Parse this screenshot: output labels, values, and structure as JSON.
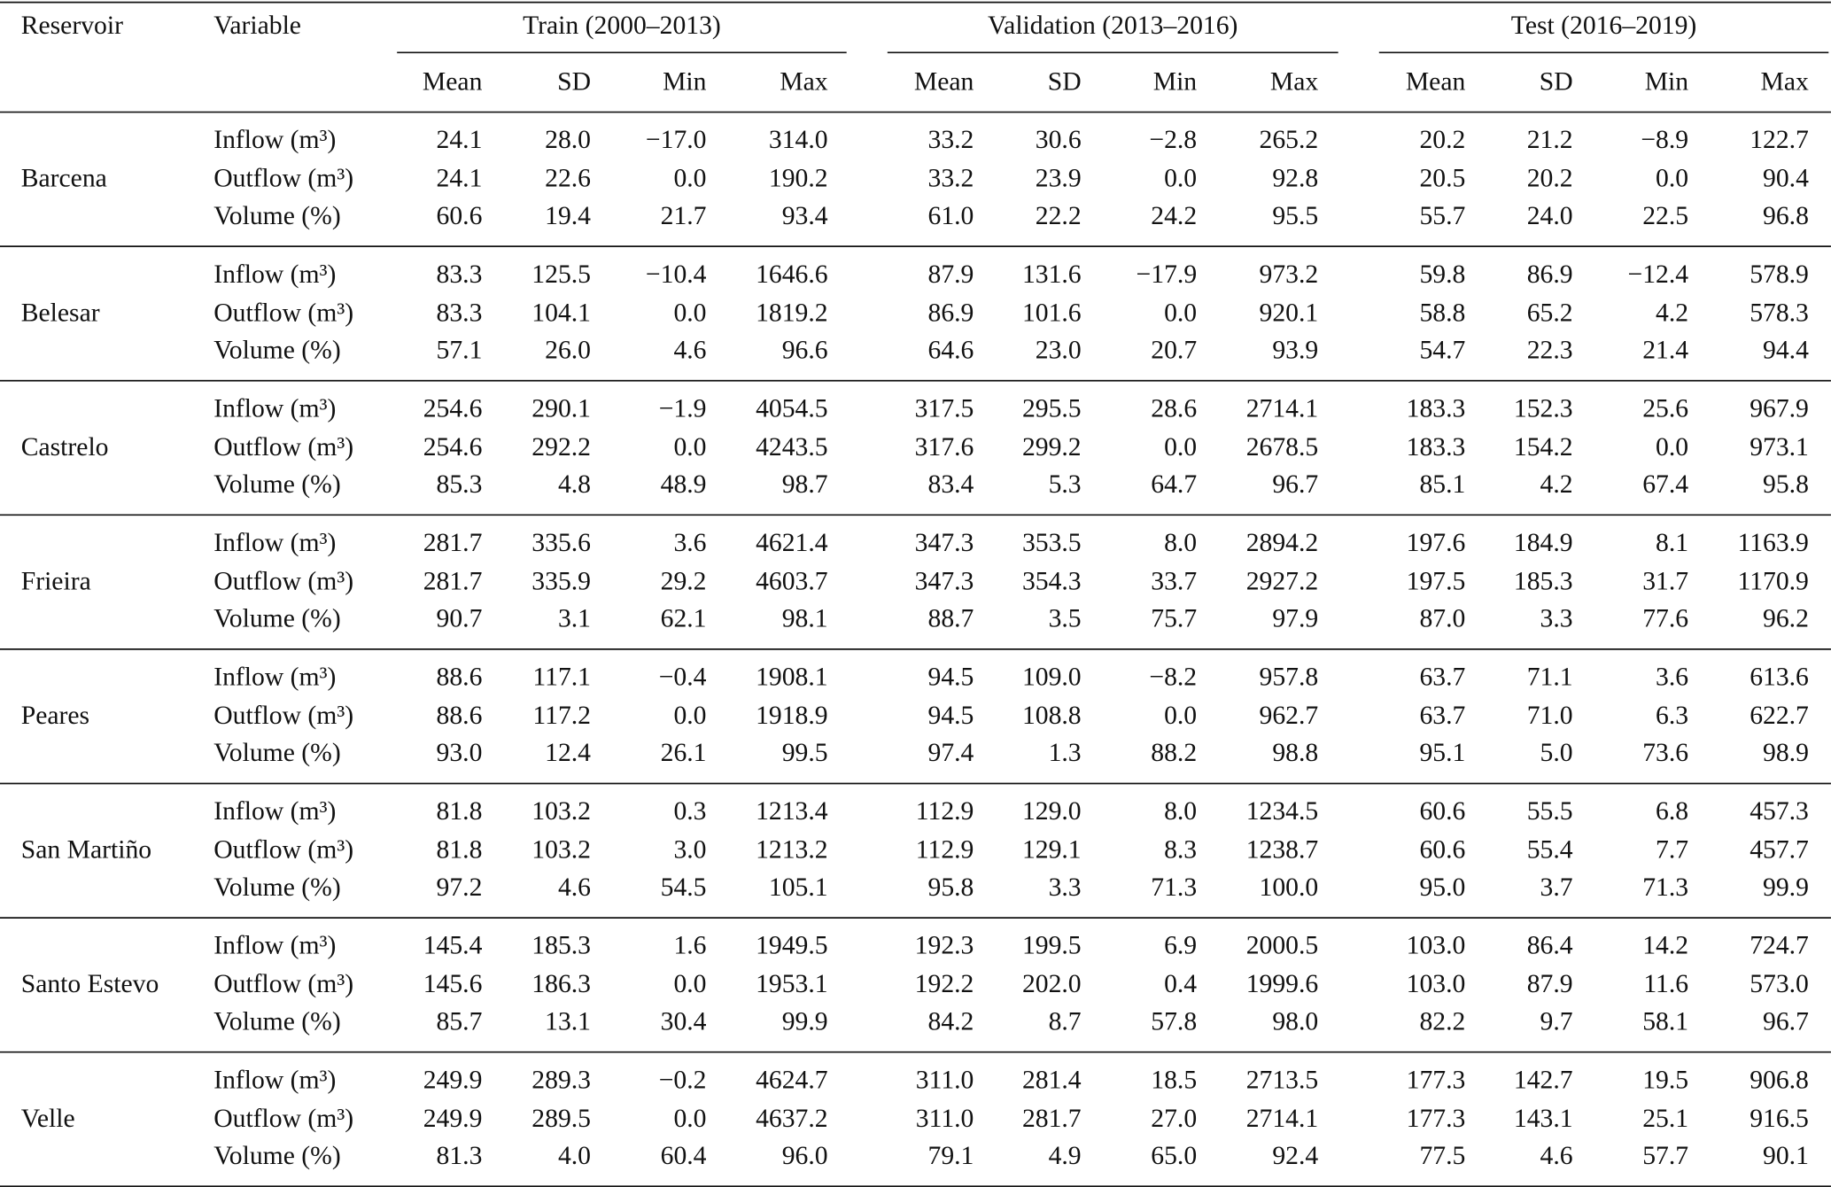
{
  "header": {
    "reservoir": "Reservoir",
    "variable": "Variable",
    "groups": [
      {
        "title": "Train (2000–2013)",
        "columns": [
          "Mean",
          "SD",
          "Min",
          "Max"
        ]
      },
      {
        "title": "Validation (2013–2016)",
        "columns": [
          "Mean",
          "SD",
          "Min",
          "Max"
        ]
      },
      {
        "title": "Test (2016–2019)",
        "columns": [
          "Mean",
          "SD",
          "Min",
          "Max"
        ]
      }
    ]
  },
  "rows": [
    {
      "reservoir": "Barcena",
      "variables": [
        {
          "name": "Inflow (m³)",
          "values": [
            "24.1",
            "28.0",
            "−17.0",
            "314.0",
            "33.2",
            "30.6",
            "−2.8",
            "265.2",
            "20.2",
            "21.2",
            "−8.9",
            "122.7"
          ]
        },
        {
          "name": "Outflow (m³)",
          "values": [
            "24.1",
            "22.6",
            "0.0",
            "190.2",
            "33.2",
            "23.9",
            "0.0",
            "92.8",
            "20.5",
            "20.2",
            "0.0",
            "90.4"
          ]
        },
        {
          "name": "Volume (%)",
          "values": [
            "60.6",
            "19.4",
            "21.7",
            "93.4",
            "61.0",
            "22.2",
            "24.2",
            "95.5",
            "55.7",
            "24.0",
            "22.5",
            "96.8"
          ]
        }
      ]
    },
    {
      "reservoir": "Belesar",
      "variables": [
        {
          "name": "Inflow (m³)",
          "values": [
            "83.3",
            "125.5",
            "−10.4",
            "1646.6",
            "87.9",
            "131.6",
            "−17.9",
            "973.2",
            "59.8",
            "86.9",
            "−12.4",
            "578.9"
          ]
        },
        {
          "name": "Outflow (m³)",
          "values": [
            "83.3",
            "104.1",
            "0.0",
            "1819.2",
            "86.9",
            "101.6",
            "0.0",
            "920.1",
            "58.8",
            "65.2",
            "4.2",
            "578.3"
          ]
        },
        {
          "name": "Volume (%)",
          "values": [
            "57.1",
            "26.0",
            "4.6",
            "96.6",
            "64.6",
            "23.0",
            "20.7",
            "93.9",
            "54.7",
            "22.3",
            "21.4",
            "94.4"
          ]
        }
      ]
    },
    {
      "reservoir": "Castrelo",
      "variables": [
        {
          "name": "Inflow (m³)",
          "values": [
            "254.6",
            "290.1",
            "−1.9",
            "4054.5",
            "317.5",
            "295.5",
            "28.6",
            "2714.1",
            "183.3",
            "152.3",
            "25.6",
            "967.9"
          ]
        },
        {
          "name": "Outflow (m³)",
          "values": [
            "254.6",
            "292.2",
            "0.0",
            "4243.5",
            "317.6",
            "299.2",
            "0.0",
            "2678.5",
            "183.3",
            "154.2",
            "0.0",
            "973.1"
          ]
        },
        {
          "name": "Volume (%)",
          "values": [
            "85.3",
            "4.8",
            "48.9",
            "98.7",
            "83.4",
            "5.3",
            "64.7",
            "96.7",
            "85.1",
            "4.2",
            "67.4",
            "95.8"
          ]
        }
      ]
    },
    {
      "reservoir": "Frieira",
      "variables": [
        {
          "name": "Inflow (m³)",
          "values": [
            "281.7",
            "335.6",
            "3.6",
            "4621.4",
            "347.3",
            "353.5",
            "8.0",
            "2894.2",
            "197.6",
            "184.9",
            "8.1",
            "1163.9"
          ]
        },
        {
          "name": "Outflow (m³)",
          "values": [
            "281.7",
            "335.9",
            "29.2",
            "4603.7",
            "347.3",
            "354.3",
            "33.7",
            "2927.2",
            "197.5",
            "185.3",
            "31.7",
            "1170.9"
          ]
        },
        {
          "name": "Volume (%)",
          "values": [
            "90.7",
            "3.1",
            "62.1",
            "98.1",
            "88.7",
            "3.5",
            "75.7",
            "97.9",
            "87.0",
            "3.3",
            "77.6",
            "96.2"
          ]
        }
      ]
    },
    {
      "reservoir": "Peares",
      "variables": [
        {
          "name": "Inflow (m³)",
          "values": [
            "88.6",
            "117.1",
            "−0.4",
            "1908.1",
            "94.5",
            "109.0",
            "−8.2",
            "957.8",
            "63.7",
            "71.1",
            "3.6",
            "613.6"
          ]
        },
        {
          "name": "Outflow (m³)",
          "values": [
            "88.6",
            "117.2",
            "0.0",
            "1918.9",
            "94.5",
            "108.8",
            "0.0",
            "962.7",
            "63.7",
            "71.0",
            "6.3",
            "622.7"
          ]
        },
        {
          "name": "Volume (%)",
          "values": [
            "93.0",
            "12.4",
            "26.1",
            "99.5",
            "97.4",
            "1.3",
            "88.2",
            "98.8",
            "95.1",
            "5.0",
            "73.6",
            "98.9"
          ]
        }
      ]
    },
    {
      "reservoir": "San Martiño",
      "variables": [
        {
          "name": "Inflow (m³)",
          "values": [
            "81.8",
            "103.2",
            "0.3",
            "1213.4",
            "112.9",
            "129.0",
            "8.0",
            "1234.5",
            "60.6",
            "55.5",
            "6.8",
            "457.3"
          ]
        },
        {
          "name": "Outflow (m³)",
          "values": [
            "81.8",
            "103.2",
            "3.0",
            "1213.2",
            "112.9",
            "129.1",
            "8.3",
            "1238.7",
            "60.6",
            "55.4",
            "7.7",
            "457.7"
          ]
        },
        {
          "name": "Volume (%)",
          "values": [
            "97.2",
            "4.6",
            "54.5",
            "105.1",
            "95.8",
            "3.3",
            "71.3",
            "100.0",
            "95.0",
            "3.7",
            "71.3",
            "99.9"
          ]
        }
      ]
    },
    {
      "reservoir": "Santo Estevo",
      "variables": [
        {
          "name": "Inflow (m³)",
          "values": [
            "145.4",
            "185.3",
            "1.6",
            "1949.5",
            "192.3",
            "199.5",
            "6.9",
            "2000.5",
            "103.0",
            "86.4",
            "14.2",
            "724.7"
          ]
        },
        {
          "name": "Outflow (m³)",
          "values": [
            "145.6",
            "186.3",
            "0.0",
            "1953.1",
            "192.2",
            "202.0",
            "0.4",
            "1999.6",
            "103.0",
            "87.9",
            "11.6",
            "573.0"
          ]
        },
        {
          "name": "Volume (%)",
          "values": [
            "85.7",
            "13.1",
            "30.4",
            "99.9",
            "84.2",
            "8.7",
            "57.8",
            "98.0",
            "82.2",
            "9.7",
            "58.1",
            "96.7"
          ]
        }
      ]
    },
    {
      "reservoir": "Velle",
      "variables": [
        {
          "name": "Inflow (m³)",
          "values": [
            "249.9",
            "289.3",
            "−0.2",
            "4624.7",
            "311.0",
            "281.4",
            "18.5",
            "2713.5",
            "177.3",
            "142.7",
            "19.5",
            "906.8"
          ]
        },
        {
          "name": "Outflow (m³)",
          "values": [
            "249.9",
            "289.5",
            "0.0",
            "4637.2",
            "311.0",
            "281.7",
            "27.0",
            "2714.1",
            "177.3",
            "143.1",
            "25.1",
            "916.5"
          ]
        },
        {
          "name": "Volume (%)",
          "values": [
            "81.3",
            "4.0",
            "60.4",
            "96.0",
            "79.1",
            "4.9",
            "65.0",
            "92.4",
            "77.5",
            "4.6",
            "57.7",
            "90.1"
          ]
        }
      ]
    }
  ]
}
